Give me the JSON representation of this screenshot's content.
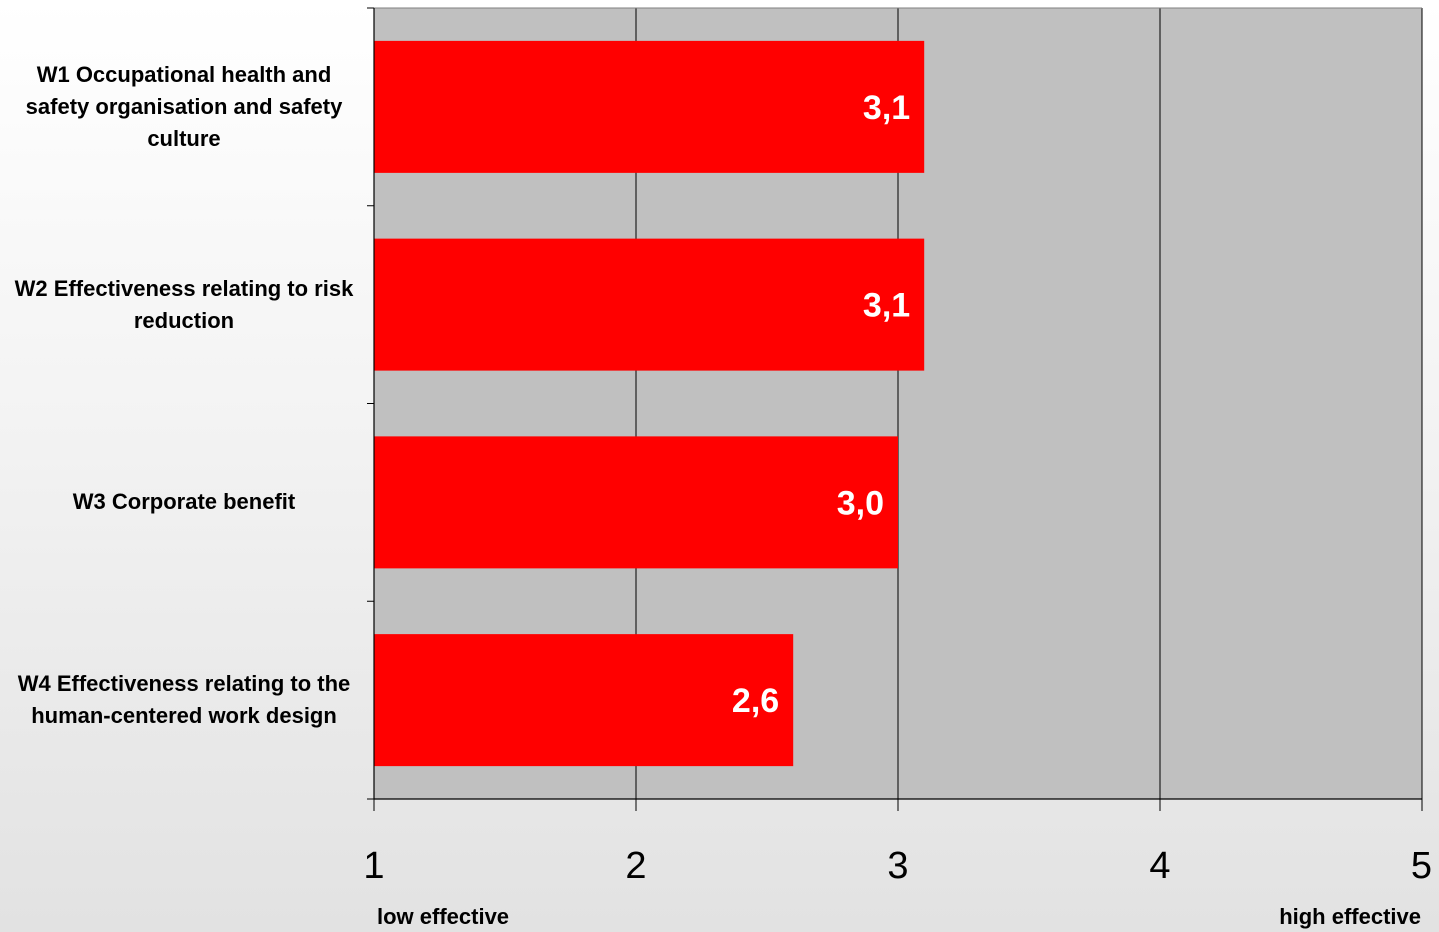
{
  "chart_data": {
    "type": "bar",
    "orientation": "horizontal",
    "categories": [
      "W1 Occupational health and safety organisation and safety culture",
      "W2 Effectiveness relating to risk reduction",
      "W3 Corporate benefit",
      "W4 Effectiveness relating to the human-centered work design"
    ],
    "values": [
      3.1,
      3.1,
      3.0,
      2.6
    ],
    "value_labels": [
      "3,1",
      "3,1",
      "3,0",
      "2,6"
    ],
    "xlim": [
      1,
      5
    ],
    "x_ticks": [
      "1",
      "2",
      "3",
      "4",
      "5"
    ],
    "x_low_label": "low effective",
    "x_high_label": "high effective",
    "title": "",
    "xlabel": "",
    "ylabel": "",
    "grid": true,
    "legend": "none",
    "colors": {
      "bar": "#ff0000",
      "plot_background": "#c0c0c0",
      "value_label": "#ffffff",
      "gridline": "#000000"
    }
  }
}
